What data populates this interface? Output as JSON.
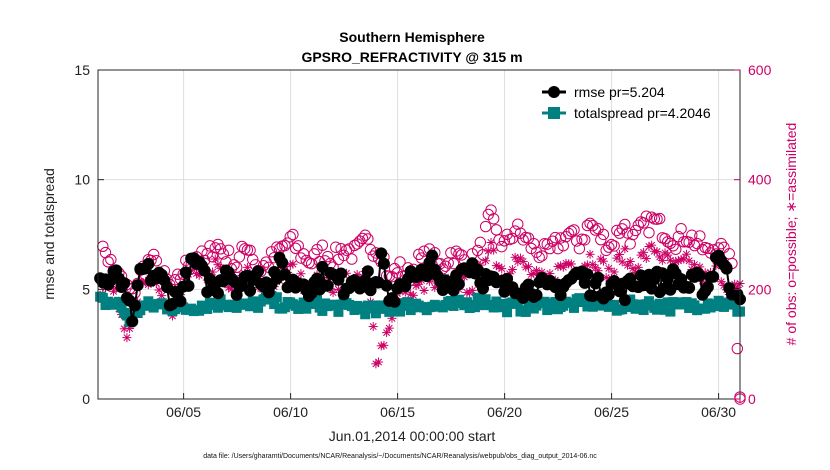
{
  "chart_data": {
    "type": "line",
    "title": "Southern Hemisphere",
    "subtitle": "GPSRO_REFRACTIVITY @ 315 m",
    "xlabel": "Jun.01,2014 00:00:00 start",
    "ylabel_left": "rmse and totalspread",
    "ylabel_right": "# of obs: o=possible; ∗=assimilated",
    "xlim": [
      1,
      31
    ],
    "ylim_left": [
      0,
      15
    ],
    "ylim_right": [
      0,
      600
    ],
    "x_ticks": [
      {
        "value": 5,
        "label": "06/05"
      },
      {
        "value": 10,
        "label": "06/10"
      },
      {
        "value": 15,
        "label": "06/15"
      },
      {
        "value": 20,
        "label": "06/20"
      },
      {
        "value": 25,
        "label": "06/25"
      },
      {
        "value": 30,
        "label": "06/30"
      }
    ],
    "y_ticks_left": [
      "0",
      "5",
      "10",
      "15"
    ],
    "y_ticks_right": [
      "0",
      "200",
      "400",
      "600"
    ],
    "grid": true,
    "legend_position": "top-right",
    "colors": {
      "rmse": "#000000",
      "totalspread": "#008080",
      "obs": "#cc0066"
    },
    "rmse_anchors": [
      [
        1.0,
        5.5
      ],
      [
        1.5,
        5.3
      ],
      [
        2.0,
        5.6
      ],
      [
        2.4,
        4.2
      ],
      [
        2.7,
        3.6
      ],
      [
        3.0,
        5.9
      ],
      [
        3.5,
        5.7
      ],
      [
        4.0,
        5.4
      ],
      [
        4.5,
        4.5
      ],
      [
        5.0,
        5.1
      ],
      [
        5.5,
        6.3
      ],
      [
        6.0,
        5.4
      ],
      [
        6.5,
        5.0
      ],
      [
        7.0,
        6.1
      ],
      [
        7.5,
        5.2
      ],
      [
        8.0,
        5.3
      ],
      [
        8.5,
        5.7
      ],
      [
        9.0,
        5.3
      ],
      [
        9.5,
        6.0
      ],
      [
        10.0,
        5.2
      ],
      [
        10.5,
        5.4
      ],
      [
        11.0,
        5.1
      ],
      [
        11.5,
        5.6
      ],
      [
        12.0,
        5.5
      ],
      [
        12.5,
        5.2
      ],
      [
        13.0,
        5.6
      ],
      [
        13.5,
        5.4
      ],
      [
        14.0,
        5.2
      ],
      [
        14.3,
        6.5
      ],
      [
        14.6,
        4.0
      ],
      [
        15.0,
        5.2
      ],
      [
        15.5,
        5.6
      ],
      [
        16.0,
        5.3
      ],
      [
        16.5,
        6.4
      ],
      [
        17.0,
        5.0
      ],
      [
        17.5,
        5.3
      ],
      [
        18.0,
        5.9
      ],
      [
        18.5,
        6.2
      ],
      [
        19.0,
        5.5
      ],
      [
        19.5,
        5.2
      ],
      [
        20.0,
        5.0
      ],
      [
        20.5,
        5.3
      ],
      [
        21.0,
        5.0
      ],
      [
        21.5,
        5.2
      ],
      [
        22.0,
        4.9
      ],
      [
        22.5,
        5.1
      ],
      [
        23.0,
        5.4
      ],
      [
        23.5,
        5.7
      ],
      [
        24.0,
        5.2
      ],
      [
        24.5,
        5.0
      ],
      [
        25.0,
        5.3
      ],
      [
        25.5,
        4.9
      ],
      [
        26.0,
        5.2
      ],
      [
        26.5,
        5.6
      ],
      [
        27.0,
        5.4
      ],
      [
        27.5,
        5.3
      ],
      [
        28.0,
        5.6
      ],
      [
        28.5,
        5.1
      ],
      [
        29.0,
        5.3
      ],
      [
        29.5,
        5.1
      ],
      [
        30.0,
        6.8
      ],
      [
        30.5,
        5.2
      ],
      [
        31.0,
        5.0
      ]
    ],
    "totalspread_anchors": [
      [
        1.0,
        4.5
      ],
      [
        2.0,
        4.3
      ],
      [
        2.5,
        3.6
      ],
      [
        3.0,
        4.2
      ],
      [
        4.0,
        4.3
      ],
      [
        5.0,
        4.1
      ],
      [
        6.0,
        4.3
      ],
      [
        7.0,
        4.4
      ],
      [
        8.0,
        4.2
      ],
      [
        9.0,
        4.5
      ],
      [
        10.0,
        4.2
      ],
      [
        11.0,
        4.3
      ],
      [
        12.0,
        4.2
      ],
      [
        13.0,
        4.2
      ],
      [
        14.0,
        4.0
      ],
      [
        14.5,
        4.1
      ],
      [
        15.0,
        4.2
      ],
      [
        16.0,
        4.3
      ],
      [
        17.0,
        4.2
      ],
      [
        18.0,
        4.3
      ],
      [
        19.0,
        4.5
      ],
      [
        20.0,
        4.2
      ],
      [
        21.0,
        4.2
      ],
      [
        22.0,
        4.3
      ],
      [
        23.0,
        4.3
      ],
      [
        24.0,
        4.4
      ],
      [
        25.0,
        4.2
      ],
      [
        26.0,
        4.3
      ],
      [
        27.0,
        4.3
      ],
      [
        28.0,
        4.2
      ],
      [
        29.0,
        4.3
      ],
      [
        30.0,
        4.4
      ],
      [
        31.0,
        4.1
      ]
    ],
    "possible_anchors": [
      [
        1.0,
        215
      ],
      [
        1.3,
        280
      ],
      [
        1.7,
        235
      ],
      [
        2.2,
        210
      ],
      [
        2.6,
        190
      ],
      [
        3.0,
        230
      ],
      [
        3.5,
        255
      ],
      [
        4.0,
        225
      ],
      [
        4.5,
        195
      ],
      [
        5.0,
        235
      ],
      [
        5.5,
        265
      ],
      [
        6.0,
        250
      ],
      [
        6.5,
        285
      ],
      [
        7.0,
        260
      ],
      [
        7.5,
        245
      ],
      [
        8.0,
        285
      ],
      [
        8.5,
        235
      ],
      [
        9.0,
        250
      ],
      [
        9.5,
        270
      ],
      [
        10.0,
        290
      ],
      [
        10.5,
        265
      ],
      [
        11.0,
        250
      ],
      [
        11.5,
        270
      ],
      [
        12.0,
        255
      ],
      [
        12.5,
        275
      ],
      [
        13.0,
        265
      ],
      [
        13.5,
        285
      ],
      [
        14.0,
        275
      ],
      [
        14.3,
        265
      ],
      [
        14.6,
        215
      ],
      [
        15.0,
        240
      ],
      [
        15.5,
        225
      ],
      [
        16.0,
        250
      ],
      [
        16.5,
        260
      ],
      [
        17.0,
        240
      ],
      [
        17.5,
        265
      ],
      [
        18.0,
        255
      ],
      [
        18.5,
        250
      ],
      [
        19.0,
        280
      ],
      [
        19.3,
        335
      ],
      [
        19.6,
        300
      ],
      [
        20.0,
        280
      ],
      [
        20.5,
        310
      ],
      [
        21.0,
        290
      ],
      [
        21.5,
        270
      ],
      [
        22.0,
        265
      ],
      [
        22.5,
        285
      ],
      [
        23.0,
        300
      ],
      [
        23.5,
        285
      ],
      [
        24.0,
        320
      ],
      [
        24.5,
        295
      ],
      [
        25.0,
        280
      ],
      [
        25.5,
        320
      ],
      [
        26.0,
        290
      ],
      [
        26.5,
        315
      ],
      [
        27.0,
        325
      ],
      [
        27.5,
        305
      ],
      [
        28.0,
        290
      ],
      [
        28.5,
        300
      ],
      [
        29.0,
        285
      ],
      [
        29.5,
        265
      ],
      [
        30.0,
        285
      ],
      [
        30.3,
        255
      ],
      [
        30.7,
        245
      ],
      [
        31.0,
        0
      ]
    ],
    "assimilated_anchors": [
      [
        1.0,
        195
      ],
      [
        1.5,
        215
      ],
      [
        2.0,
        175
      ],
      [
        2.3,
        120
      ],
      [
        2.6,
        160
      ],
      [
        3.0,
        200
      ],
      [
        3.5,
        215
      ],
      [
        4.0,
        185
      ],
      [
        4.5,
        150
      ],
      [
        5.0,
        200
      ],
      [
        5.5,
        235
      ],
      [
        6.0,
        215
      ],
      [
        6.5,
        245
      ],
      [
        7.0,
        215
      ],
      [
        7.5,
        200
      ],
      [
        8.0,
        235
      ],
      [
        8.5,
        200
      ],
      [
        9.0,
        205
      ],
      [
        9.5,
        225
      ],
      [
        10.0,
        240
      ],
      [
        10.5,
        215
      ],
      [
        11.0,
        205
      ],
      [
        11.5,
        225
      ],
      [
        12.0,
        205
      ],
      [
        12.5,
        225
      ],
      [
        13.0,
        210
      ],
      [
        13.5,
        225
      ],
      [
        13.8,
        155
      ],
      [
        14.0,
        70
      ],
      [
        14.2,
        90
      ],
      [
        14.5,
        120
      ],
      [
        14.8,
        165
      ],
      [
        15.0,
        190
      ],
      [
        15.5,
        180
      ],
      [
        16.0,
        205
      ],
      [
        16.5,
        215
      ],
      [
        17.0,
        195
      ],
      [
        17.5,
        215
      ],
      [
        18.0,
        210
      ],
      [
        18.5,
        205
      ],
      [
        19.0,
        240
      ],
      [
        19.3,
        295
      ],
      [
        19.6,
        255
      ],
      [
        20.0,
        230
      ],
      [
        20.5,
        255
      ],
      [
        21.0,
        240
      ],
      [
        21.5,
        220
      ],
      [
        22.0,
        215
      ],
      [
        22.5,
        235
      ],
      [
        23.0,
        250
      ],
      [
        23.5,
        235
      ],
      [
        24.0,
        260
      ],
      [
        24.5,
        245
      ],
      [
        25.0,
        225
      ],
      [
        25.5,
        265
      ],
      [
        26.0,
        240
      ],
      [
        26.5,
        260
      ],
      [
        27.0,
        275
      ],
      [
        27.5,
        255
      ],
      [
        28.0,
        240
      ],
      [
        28.5,
        250
      ],
      [
        29.0,
        235
      ],
      [
        29.5,
        215
      ],
      [
        30.0,
        240
      ],
      [
        30.3,
        210
      ],
      [
        30.7,
        200
      ]
    ]
  },
  "legend": {
    "rmse_label": "rmse pr=5.204",
    "totalspread_label": "totalspread pr=4.2046"
  },
  "footer": "data file: /Users/gharamti/Documents/NCAR/Reanalysis/~/Documents/NCAR/Reanalysis/webpub/obs_diag_output_2014-06.nc"
}
